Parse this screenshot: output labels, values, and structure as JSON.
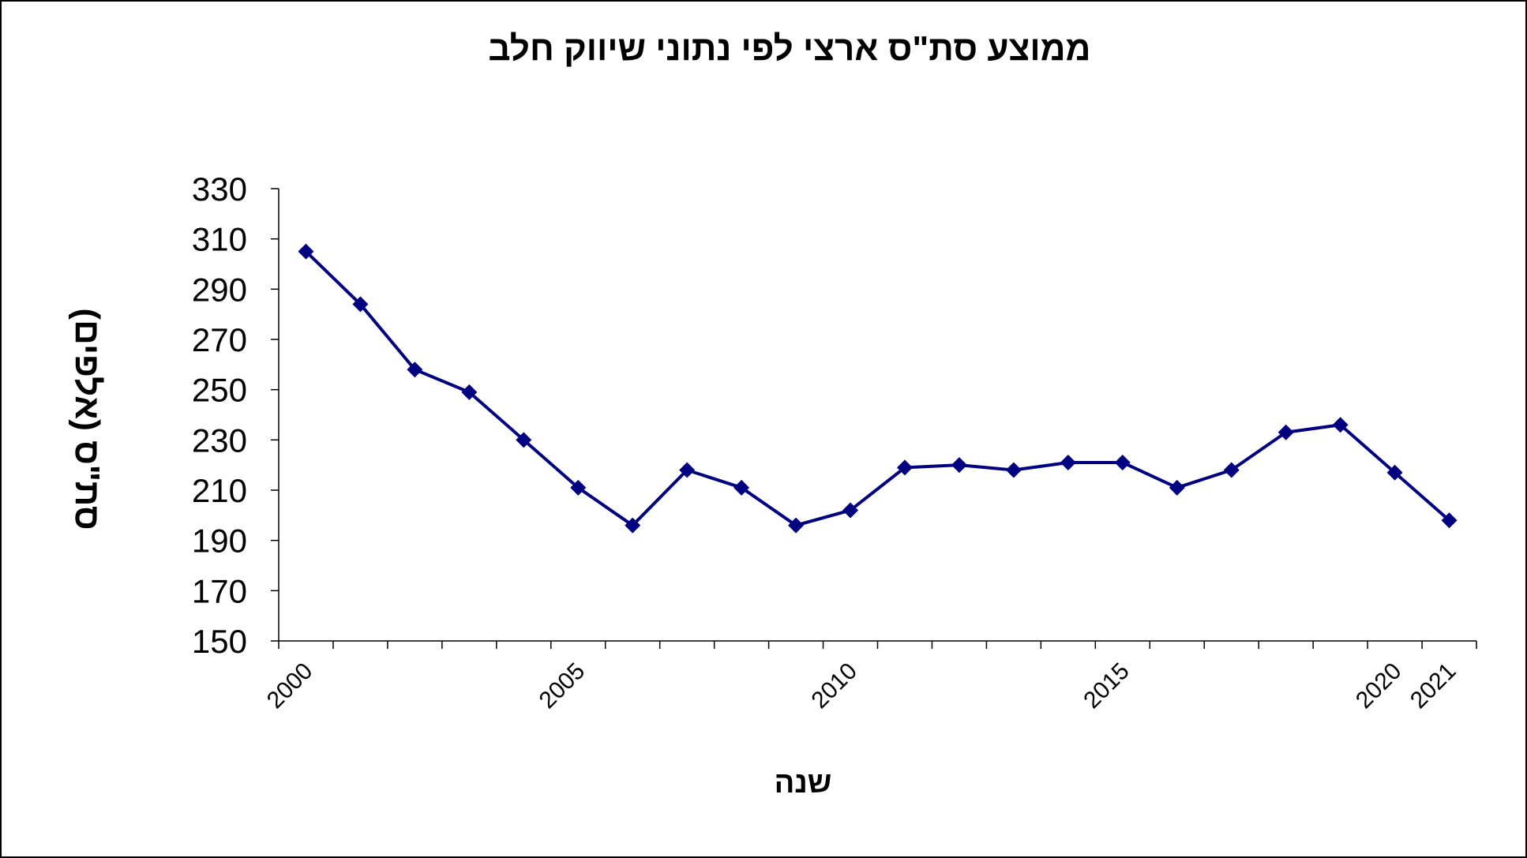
{
  "chart_data": {
    "type": "line",
    "title": "ממוצע סת\"ס ארצי לפי נתוני שיווק חלב",
    "xlabel": "שנה",
    "ylabel": "סת\"ס (אלפים)",
    "ylim": [
      150,
      330
    ],
    "yticks": [
      150,
      170,
      190,
      210,
      230,
      250,
      270,
      290,
      310,
      330
    ],
    "xticks": [
      2000,
      2005,
      2010,
      2015,
      2020,
      2021
    ],
    "grid": false,
    "series": [
      {
        "color": "#000080",
        "marker": "diamond",
        "x": [
          2000,
          2001,
          2002,
          2003,
          2004,
          2005,
          2006,
          2007,
          2008,
          2009,
          2010,
          2011,
          2012,
          2013,
          2014,
          2015,
          2016,
          2017,
          2018,
          2019,
          2020,
          2021
        ],
        "values": [
          305,
          284,
          258,
          249,
          230,
          211,
          196,
          218,
          211,
          196,
          202,
          219,
          220,
          218,
          221,
          221,
          211,
          218,
          233,
          236,
          217,
          198
        ]
      }
    ]
  }
}
